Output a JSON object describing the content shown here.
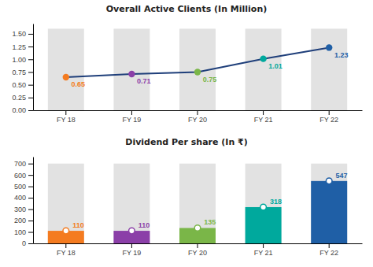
{
  "chart_data": [
    {
      "type": "line",
      "title": "Overall Active Clients (In Million)",
      "categories": [
        "FY 18",
        "FY 19",
        "FY 20",
        "FY 21",
        "FY 22"
      ],
      "series": [
        {
          "type": "bar",
          "color": "#e2e2e2",
          "values": [
            1.6,
            1.6,
            1.6,
            1.6,
            1.6
          ]
        },
        {
          "type": "line",
          "color": "#1f3f7a",
          "colors": [
            "#f47b20",
            "#8b3fa8",
            "#7ab648",
            "#00a99d",
            "#1f5fa6"
          ],
          "marker": "circle",
          "data_labels": true,
          "values": [
            0.65,
            0.71,
            0.75,
            1.01,
            1.23
          ]
        }
      ],
      "ylim": [
        0.0,
        1.7
      ],
      "yticks": [
        {
          "value": 0,
          "label": "0.00"
        },
        0.25,
        {
          "value": 0.5,
          "label": "0.50"
        },
        0.75,
        {
          "value": 1,
          "label": "1.00"
        },
        1.25,
        {
          "value": 1.5,
          "label": "1.50"
        }
      ]
    },
    {
      "type": "bar",
      "title": "Dividend Per share (In ₹)",
      "categories": [
        "FY 18",
        "FY 19",
        "FY 20",
        "FY 21",
        "FY 22"
      ],
      "series": [
        {
          "type": "bar",
          "color": "#e2e2e2",
          "values": [
            700,
            700,
            700,
            700,
            700
          ]
        },
        {
          "type": "bar",
          "colors": [
            "#f47b20",
            "#8b3fa8",
            "#7ab648",
            "#00a99d",
            "#1f5fa6"
          ],
          "marker": "circle",
          "data_labels": true,
          "values": [
            110,
            110,
            135,
            318,
            547
          ]
        }
      ],
      "ylim": [
        0,
        760
      ],
      "yticks": [
        0,
        100,
        200,
        300,
        400,
        500,
        600,
        700
      ]
    }
  ]
}
